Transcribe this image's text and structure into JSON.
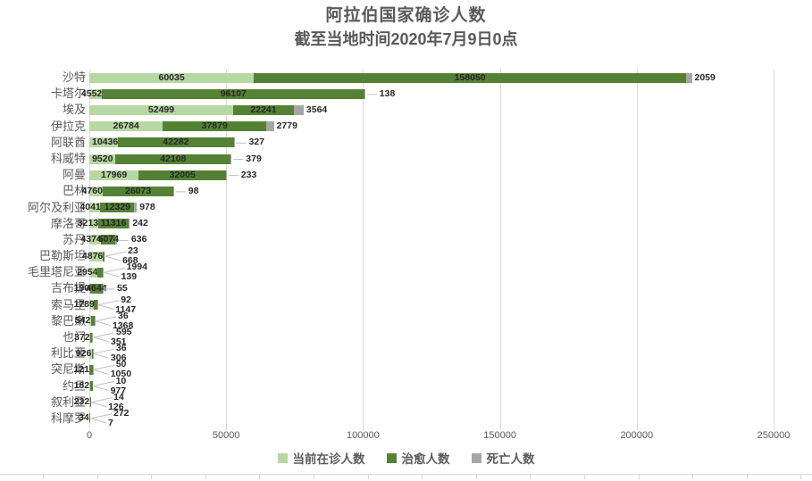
{
  "chart_data": {
    "type": "bar",
    "stacked": true,
    "orientation": "horizontal",
    "title": "阿拉伯国家确诊人数",
    "subtitle": "截至当地时间2020年7月9日0点",
    "categories": [
      "沙特",
      "卡塔尔",
      "埃及",
      "伊拉克",
      "阿联酋",
      "科威特",
      "阿曼",
      "巴林",
      "阿尔及利亚",
      "摩洛哥",
      "苏丹",
      "巴勒斯坦",
      "毛里塔尼亚",
      "吉布提",
      "索马里",
      "黎巴嫩",
      "也门",
      "利比亚",
      "突尼斯",
      "约旦",
      "叙利亚",
      "科摩罗"
    ],
    "series": [
      {
        "name": "当前在诊人数",
        "color": "#b7d7a3",
        "values": [
          60035,
          4552,
          52499,
          26784,
          10436,
          9520,
          17969,
          4760,
          4041,
          3213,
          4374,
          4876,
          2954,
          190,
          1789,
          542,
          372,
          926,
          121,
          182,
          232,
          34
        ]
      },
      {
        "name": "治愈人数",
        "color": "#548235",
        "values": [
          158050,
          96107,
          22241,
          37879,
          42282,
          42108,
          32005,
          26073,
          12329,
          11316,
          5074,
          668,
          1994,
          4644,
          1147,
          1368,
          595,
          306,
          1050,
          977,
          126,
          272
        ]
      },
      {
        "name": "死亡人数",
        "color": "#a6a6a6",
        "values": [
          2059,
          138,
          3564,
          2779,
          327,
          379,
          233,
          98,
          978,
          242,
          636,
          23,
          139,
          55,
          92,
          36,
          351,
          36,
          50,
          10,
          14,
          7
        ]
      }
    ],
    "xlim": [
      0,
      250000
    ],
    "x_ticks": [
      0,
      50000,
      100000,
      150000,
      200000,
      250000
    ],
    "legend_position": "bottom",
    "grid": "vertical",
    "label_placements": [
      {
        "cured": "inside",
        "deaths": "adjacent"
      },
      {
        "cured": "inside",
        "deaths": "dash"
      },
      {
        "cured": "inside",
        "deaths": "adjacent"
      },
      {
        "cured": "inside",
        "deaths": "adjacent"
      },
      {
        "cured": "inside",
        "deaths": "dash"
      },
      {
        "cured": "inside",
        "deaths": "dash"
      },
      {
        "cured": "inside",
        "deaths": "dash"
      },
      {
        "cured": "inside",
        "deaths": "dash"
      },
      {
        "cured": "inside",
        "deaths": "adjacent"
      },
      {
        "cured": "inside",
        "deaths": "adjacent"
      },
      {
        "cured": "inside",
        "deaths": "dash"
      },
      {
        "callout": [
          "deaths",
          "cured"
        ]
      },
      {
        "callout": [
          "cured",
          "deaths"
        ]
      },
      {
        "cured": "inside",
        "deaths": "dash"
      },
      {
        "callout": [
          "deaths",
          "cured"
        ]
      },
      {
        "callout": [
          "deaths",
          "cured"
        ]
      },
      {
        "callout": [
          "cured",
          "deaths"
        ]
      },
      {
        "callout": [
          "deaths",
          "cured"
        ]
      },
      {
        "callout": [
          "deaths",
          "cured"
        ]
      },
      {
        "callout": [
          "deaths",
          "cured"
        ]
      },
      {
        "callout": [
          "deaths",
          "cured"
        ]
      },
      {
        "callout": [
          "cured",
          "deaths"
        ]
      }
    ]
  },
  "colors": {
    "title": "#595959",
    "axis_text": "#595959",
    "gridline": "#d9d9d9",
    "leader_line": "#bfbfbf",
    "value_label": "#262626"
  }
}
